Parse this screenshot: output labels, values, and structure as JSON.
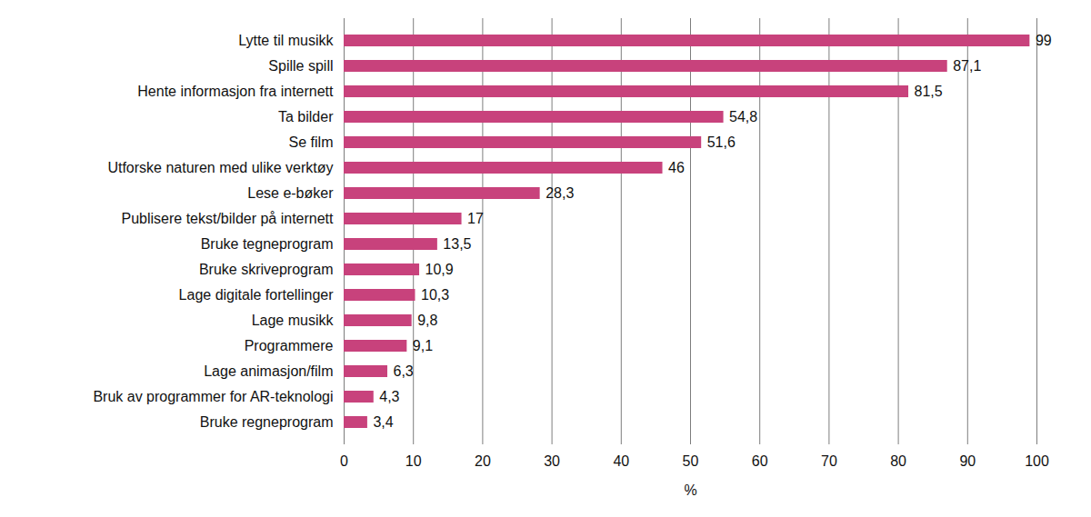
{
  "chart_data": {
    "type": "bar",
    "orientation": "horizontal",
    "categories": [
      "Lytte til musikk",
      "Spille spill",
      "Hente informasjon fra internett",
      "Ta bilder",
      "Se film",
      "Utforske naturen med ulike verktøy",
      "Lese e-bøker",
      "Publisere tekst/bilder på internett",
      "Bruke tegneprogram",
      "Bruke skriveprogram",
      "Lage digitale fortellinger",
      "Lage musikk",
      "Programmere",
      "Lage animasjon/film",
      "Bruk av programmer for AR-teknologi",
      "Bruke regneprogram"
    ],
    "values": [
      99,
      87.1,
      81.5,
      54.8,
      51.6,
      46,
      28.3,
      17,
      13.5,
      10.9,
      10.3,
      9.8,
      9.1,
      6.3,
      4.3,
      3.4
    ],
    "value_labels": [
      "99",
      "87,1",
      "81,5",
      "54,8",
      "51,6",
      "46",
      "28,3",
      "17",
      "13,5",
      "10,9",
      "10,3",
      "9,8",
      "9,1",
      "6,3",
      "4,3",
      "3,4"
    ],
    "color": "#c8427c",
    "xlabel": "%",
    "xlim": [
      0,
      100
    ],
    "xticks": [
      0,
      10,
      20,
      30,
      40,
      50,
      60,
      70,
      80,
      90,
      100
    ],
    "grid": true,
    "data_labels": true
  }
}
